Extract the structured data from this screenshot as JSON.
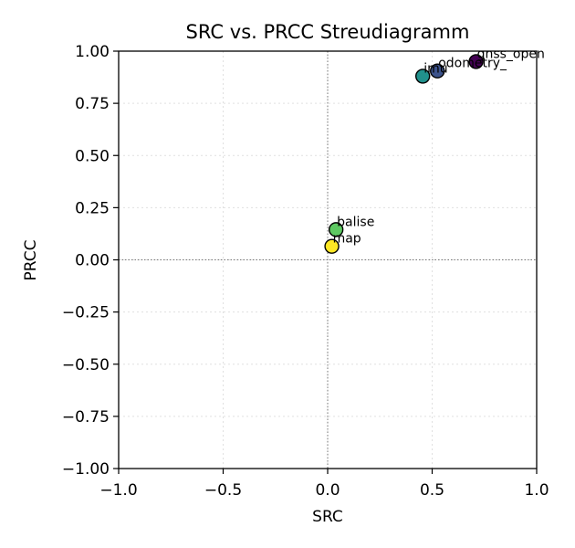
{
  "chart_data": {
    "type": "scatter",
    "title": "SRC vs. PRCC Streudiagramm",
    "xlabel": "SRC",
    "ylabel": "PRCC",
    "xlim": [
      -1.0,
      1.0
    ],
    "ylim": [
      -1.0,
      1.0
    ],
    "x_ticks": [
      "−1.0",
      "−0.5",
      "0.0",
      "0.5",
      "1.0"
    ],
    "x_tick_values": [
      -1.0,
      -0.5,
      0.0,
      0.5,
      1.0
    ],
    "y_ticks": [
      "−1.00",
      "−0.75",
      "−0.50",
      "−0.25",
      "0.00",
      "0.25",
      "0.50",
      "0.75",
      "1.00"
    ],
    "y_tick_values": [
      -1.0,
      -0.75,
      -0.5,
      -0.25,
      0.0,
      0.25,
      0.5,
      0.75,
      1.0
    ],
    "grid": true,
    "reference_lines": {
      "x": 0.0,
      "y": 0.0
    },
    "points": [
      {
        "label": "gnss_open",
        "x": 0.71,
        "y": 0.95,
        "color": "#440154"
      },
      {
        "label": "odometry_",
        "x": 0.525,
        "y": 0.905,
        "color": "#3b528b"
      },
      {
        "label": "imu",
        "x": 0.455,
        "y": 0.88,
        "color": "#21918c"
      },
      {
        "label": "balise",
        "x": 0.04,
        "y": 0.145,
        "color": "#5ec962"
      },
      {
        "label": "map",
        "x": 0.02,
        "y": 0.065,
        "color": "#fde725"
      }
    ]
  }
}
